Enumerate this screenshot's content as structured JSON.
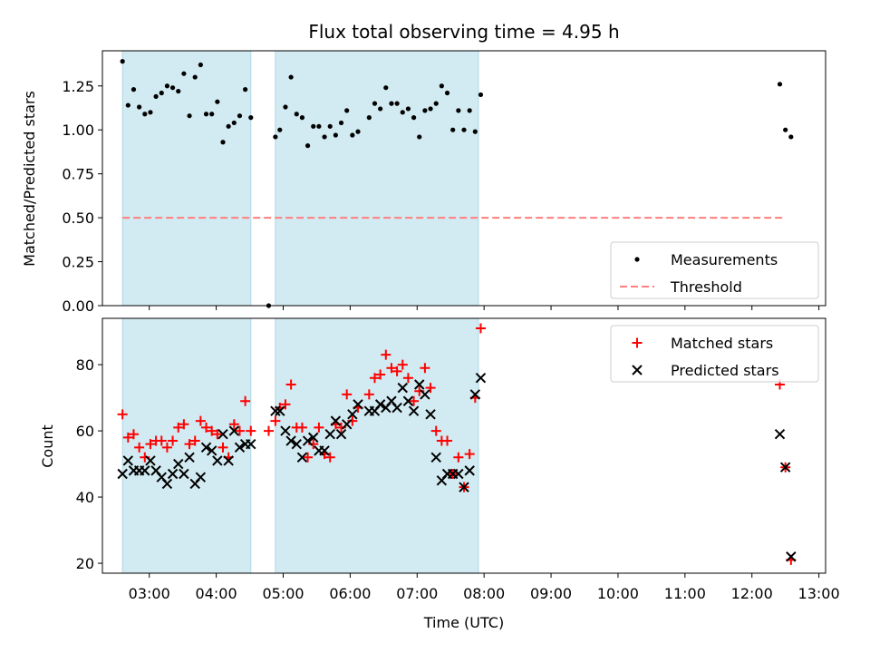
{
  "chart_data": {
    "type": "scatter",
    "title": "Flux total observing time = 4.95 h",
    "xlabel": "Time (UTC)",
    "x_unit": "hours UTC",
    "xlim": [
      "02:18",
      "13:06"
    ],
    "x_ticks": [
      "03:00",
      "04:00",
      "05:00",
      "06:00",
      "07:00",
      "08:00",
      "09:00",
      "10:00",
      "11:00",
      "12:00",
      "13:00"
    ],
    "shaded_intervals": [
      [
        "02:36",
        "04:31"
      ],
      [
        "04:53",
        "07:55"
      ]
    ],
    "shade_color": "#add8e6",
    "panels": [
      {
        "ylabel": "Matched/Predicted stars",
        "ylim": [
          0,
          1.45
        ],
        "y_ticks": [
          "0.00",
          "0.25",
          "0.50",
          "0.75",
          "1.00",
          "1.25"
        ],
        "legend_position": "lower right",
        "series": [
          {
            "name": "Measurements",
            "marker": "dot",
            "color": "#000000",
            "points": [
              [
                "02:36",
                1.39
              ],
              [
                "02:41",
                1.14
              ],
              [
                "02:46",
                1.23
              ],
              [
                "02:51",
                1.13
              ],
              [
                "02:56",
                1.09
              ],
              [
                "03:01",
                1.1
              ],
              [
                "03:06",
                1.19
              ],
              [
                "03:11",
                1.21
              ],
              [
                "03:16",
                1.25
              ],
              [
                "03:21",
                1.24
              ],
              [
                "03:26",
                1.22
              ],
              [
                "03:31",
                1.32
              ],
              [
                "03:36",
                1.08
              ],
              [
                "03:41",
                1.3
              ],
              [
                "03:46",
                1.37
              ],
              [
                "03:51",
                1.09
              ],
              [
                "03:56",
                1.09
              ],
              [
                "04:01",
                1.16
              ],
              [
                "04:06",
                0.93
              ],
              [
                "04:11",
                1.02
              ],
              [
                "04:16",
                1.04
              ],
              [
                "04:21",
                1.08
              ],
              [
                "04:26",
                1.23
              ],
              [
                "04:31",
                1.07
              ],
              [
                "04:47",
                0.0
              ],
              [
                "04:53",
                0.96
              ],
              [
                "04:57",
                1.0
              ],
              [
                "05:02",
                1.13
              ],
              [
                "05:07",
                1.3
              ],
              [
                "05:12",
                1.09
              ],
              [
                "05:17",
                1.07
              ],
              [
                "05:22",
                0.91
              ],
              [
                "05:27",
                1.02
              ],
              [
                "05:32",
                1.02
              ],
              [
                "05:37",
                0.96
              ],
              [
                "05:42",
                1.02
              ],
              [
                "05:47",
                0.97
              ],
              [
                "05:52",
                1.04
              ],
              [
                "05:57",
                1.11
              ],
              [
                "06:02",
                0.97
              ],
              [
                "06:07",
                0.99
              ],
              [
                "06:17",
                1.07
              ],
              [
                "06:22",
                1.15
              ],
              [
                "06:27",
                1.12
              ],
              [
                "06:32",
                1.24
              ],
              [
                "06:37",
                1.15
              ],
              [
                "06:42",
                1.15
              ],
              [
                "06:47",
                1.1
              ],
              [
                "06:52",
                1.12
              ],
              [
                "06:57",
                1.07
              ],
              [
                "07:02",
                0.96
              ],
              [
                "07:07",
                1.11
              ],
              [
                "07:12",
                1.12
              ],
              [
                "07:17",
                1.15
              ],
              [
                "07:22",
                1.25
              ],
              [
                "07:27",
                1.21
              ],
              [
                "07:32",
                1.0
              ],
              [
                "07:37",
                1.11
              ],
              [
                "07:42",
                1.0
              ],
              [
                "07:47",
                1.11
              ],
              [
                "07:52",
                0.99
              ],
              [
                "07:57",
                1.2
              ],
              [
                "12:25",
                1.26
              ],
              [
                "12:30",
                1.0
              ],
              [
                "12:35",
                0.96
              ]
            ]
          },
          {
            "name": "Threshold",
            "marker": "dashed-line",
            "color": "#ff7f7f",
            "points": [
              [
                "02:36",
                0.5
              ],
              [
                "12:30",
                0.5
              ]
            ]
          }
        ]
      },
      {
        "ylabel": "Count",
        "ylim": [
          17,
          94
        ],
        "y_ticks": [
          "20",
          "40",
          "60",
          "80"
        ],
        "legend_position": "upper right",
        "series": [
          {
            "name": "Matched stars",
            "marker": "plus",
            "color": "#ff0000",
            "points": [
              [
                "02:36",
                65
              ],
              [
                "02:41",
                58
              ],
              [
                "02:46",
                59
              ],
              [
                "02:51",
                55
              ],
              [
                "02:56",
                52
              ],
              [
                "03:01",
                56
              ],
              [
                "03:06",
                57
              ],
              [
                "03:11",
                57
              ],
              [
                "03:16",
                55
              ],
              [
                "03:21",
                57
              ],
              [
                "03:26",
                61
              ],
              [
                "03:31",
                62
              ],
              [
                "03:36",
                56
              ],
              [
                "03:41",
                57
              ],
              [
                "03:46",
                63
              ],
              [
                "03:51",
                61
              ],
              [
                "03:56",
                60
              ],
              [
                "04:01",
                59
              ],
              [
                "04:06",
                55
              ],
              [
                "04:11",
                52
              ],
              [
                "04:16",
                62
              ],
              [
                "04:21",
                60
              ],
              [
                "04:26",
                69
              ],
              [
                "04:31",
                60
              ],
              [
                "04:47",
                60
              ],
              [
                "04:53",
                63
              ],
              [
                "04:57",
                67
              ],
              [
                "05:02",
                68
              ],
              [
                "05:07",
                74
              ],
              [
                "05:12",
                61
              ],
              [
                "05:17",
                61
              ],
              [
                "05:22",
                52
              ],
              [
                "05:27",
                56
              ],
              [
                "05:32",
                61
              ],
              [
                "05:37",
                53
              ],
              [
                "05:42",
                52
              ],
              [
                "05:47",
                62
              ],
              [
                "05:52",
                61
              ],
              [
                "05:57",
                71
              ],
              [
                "06:02",
                63
              ],
              [
                "06:07",
                67
              ],
              [
                "06:17",
                71
              ],
              [
                "06:22",
                76
              ],
              [
                "06:27",
                77
              ],
              [
                "06:32",
                83
              ],
              [
                "06:37",
                79
              ],
              [
                "06:42",
                78
              ],
              [
                "06:47",
                80
              ],
              [
                "06:52",
                76
              ],
              [
                "06:57",
                69
              ],
              [
                "07:02",
                72
              ],
              [
                "07:07",
                79
              ],
              [
                "07:12",
                73
              ],
              [
                "07:17",
                60
              ],
              [
                "07:22",
                57
              ],
              [
                "07:27",
                57
              ],
              [
                "07:32",
                47
              ],
              [
                "07:37",
                52
              ],
              [
                "07:42",
                43
              ],
              [
                "07:47",
                53
              ],
              [
                "07:52",
                70
              ],
              [
                "07:57",
                91
              ],
              [
                "12:25",
                74
              ],
              [
                "12:30",
                49
              ],
              [
                "12:35",
                21
              ]
            ]
          },
          {
            "name": "Predicted stars",
            "marker": "x",
            "color": "#000000",
            "points": [
              [
                "02:36",
                47
              ],
              [
                "02:41",
                51
              ],
              [
                "02:46",
                48
              ],
              [
                "02:51",
                48
              ],
              [
                "02:56",
                48
              ],
              [
                "03:01",
                51
              ],
              [
                "03:06",
                48
              ],
              [
                "03:11",
                46
              ],
              [
                "03:16",
                44
              ],
              [
                "03:21",
                47
              ],
              [
                "03:26",
                50
              ],
              [
                "03:31",
                47
              ],
              [
                "03:36",
                52
              ],
              [
                "03:41",
                44
              ],
              [
                "03:46",
                46
              ],
              [
                "03:51",
                55
              ],
              [
                "03:56",
                54
              ],
              [
                "04:01",
                51
              ],
              [
                "04:06",
                59
              ],
              [
                "04:11",
                51
              ],
              [
                "04:16",
                60
              ],
              [
                "04:21",
                55
              ],
              [
                "04:26",
                56
              ],
              [
                "04:31",
                56
              ],
              [
                "04:53",
                66
              ],
              [
                "04:57",
                66
              ],
              [
                "05:02",
                60
              ],
              [
                "05:07",
                57
              ],
              [
                "05:12",
                56
              ],
              [
                "05:17",
                52
              ],
              [
                "05:22",
                57
              ],
              [
                "05:27",
                58
              ],
              [
                "05:32",
                54
              ],
              [
                "05:37",
                54
              ],
              [
                "05:42",
                59
              ],
              [
                "05:47",
                63
              ],
              [
                "05:52",
                59
              ],
              [
                "05:57",
                62
              ],
              [
                "06:02",
                65
              ],
              [
                "06:07",
                68
              ],
              [
                "06:17",
                66
              ],
              [
                "06:22",
                66
              ],
              [
                "06:27",
                68
              ],
              [
                "06:32",
                67
              ],
              [
                "06:37",
                69
              ],
              [
                "06:42",
                67
              ],
              [
                "06:47",
                73
              ],
              [
                "06:52",
                69
              ],
              [
                "06:57",
                66
              ],
              [
                "07:02",
                74
              ],
              [
                "07:07",
                71
              ],
              [
                "07:12",
                65
              ],
              [
                "07:17",
                52
              ],
              [
                "07:22",
                45
              ],
              [
                "07:27",
                47
              ],
              [
                "07:32",
                47
              ],
              [
                "07:37",
                47
              ],
              [
                "07:42",
                43
              ],
              [
                "07:47",
                48
              ],
              [
                "07:52",
                71
              ],
              [
                "07:57",
                76
              ],
              [
                "12:25",
                59
              ],
              [
                "12:30",
                49
              ],
              [
                "12:35",
                22
              ]
            ]
          }
        ]
      }
    ]
  }
}
